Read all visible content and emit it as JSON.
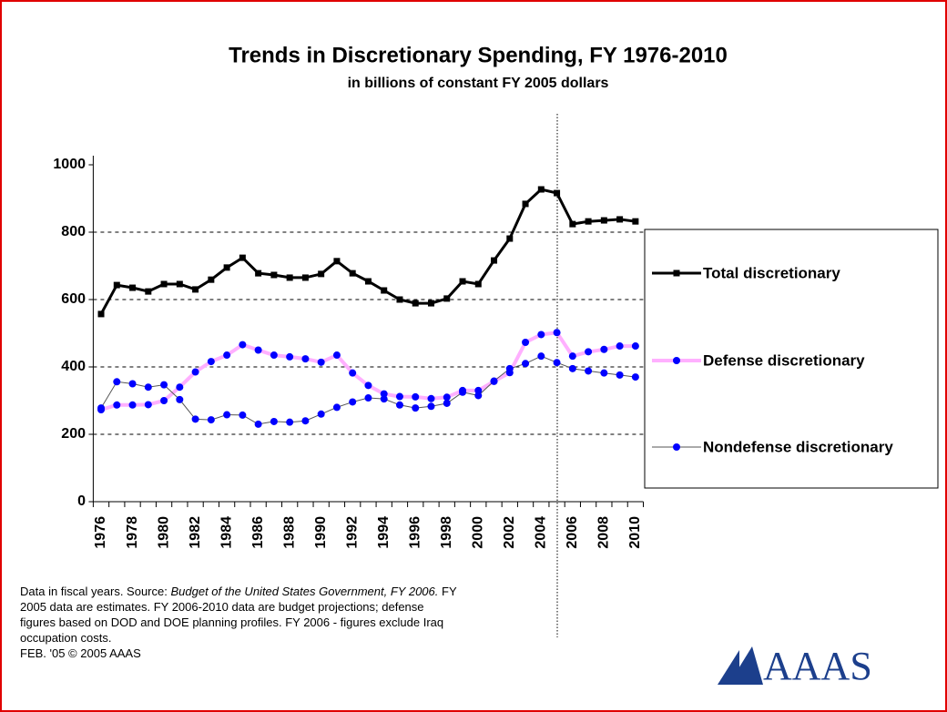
{
  "chart_data": {
    "type": "line",
    "title": "Trends in Discretionary Spending, FY 1976-2010",
    "subtitle": "in billions of constant FY 2005 dollars",
    "categories": [
      "1976",
      null,
      "1978",
      null,
      "1980",
      null,
      "1982",
      null,
      "1984",
      null,
      "1986",
      null,
      "1988",
      null,
      "1990",
      null,
      "1992",
      null,
      "1994",
      null,
      "1996",
      null,
      "1998",
      null,
      "2000",
      null,
      "2002",
      null,
      "2004",
      null,
      "2006",
      null,
      "2008",
      null,
      "2010"
    ],
    "series": [
      {
        "name": "Total discretionary",
        "color": "#000000",
        "marker_color": "#000000",
        "marker": "square",
        "line_width": 3,
        "values": [
          557,
          643,
          635,
          624,
          646,
          646,
          630,
          659,
          695,
          724,
          678,
          673,
          665,
          665,
          676,
          714,
          678,
          654,
          627,
          600,
          589,
          589,
          603,
          654,
          646,
          716,
          781,
          884,
          927,
          916,
          824,
          832,
          835,
          838,
          832
        ]
      },
      {
        "name": "Defense discretionary",
        "color": "#ffb0ff",
        "marker_color": "#0000ff",
        "marker": "circle",
        "line_width": 4,
        "values": [
          273,
          287,
          287,
          288,
          300,
          340,
          385,
          416,
          435,
          466,
          450,
          435,
          430,
          424,
          414,
          435,
          382,
          345,
          320,
          312,
          311,
          306,
          310,
          330,
          330,
          357,
          383,
          473,
          496,
          502,
          432,
          445,
          452,
          462,
          462
        ]
      },
      {
        "name": "Nondefense discretionary",
        "color": "#555555",
        "marker_color": "#0000ff",
        "marker": "circle",
        "line_width": 1,
        "values": [
          278,
          356,
          350,
          340,
          347,
          303,
          245,
          243,
          258,
          257,
          230,
          238,
          236,
          240,
          260,
          280,
          296,
          308,
          305,
          287,
          278,
          283,
          292,
          325,
          315,
          358,
          395,
          410,
          432,
          413,
          395,
          388,
          382,
          376,
          370
        ]
      }
    ],
    "ylim": [
      0,
      1000
    ],
    "yticks": [
      0,
      200,
      400,
      600,
      800,
      1000
    ],
    "grid": true,
    "legend": "right"
  },
  "note": {
    "before": "Data in fiscal years. Source:",
    "source": "Budget of the United States Government, FY 2006.",
    "after": "FY 2005 data are estimates. FY 2006-2010 data are budget projections; defense figures based on DOD and DOE planning profiles. FY 2006 - figures exclude Iraq occupation costs.",
    "copyright": "FEB. '05 © 2005 AAAS"
  },
  "logo": "AAAS"
}
